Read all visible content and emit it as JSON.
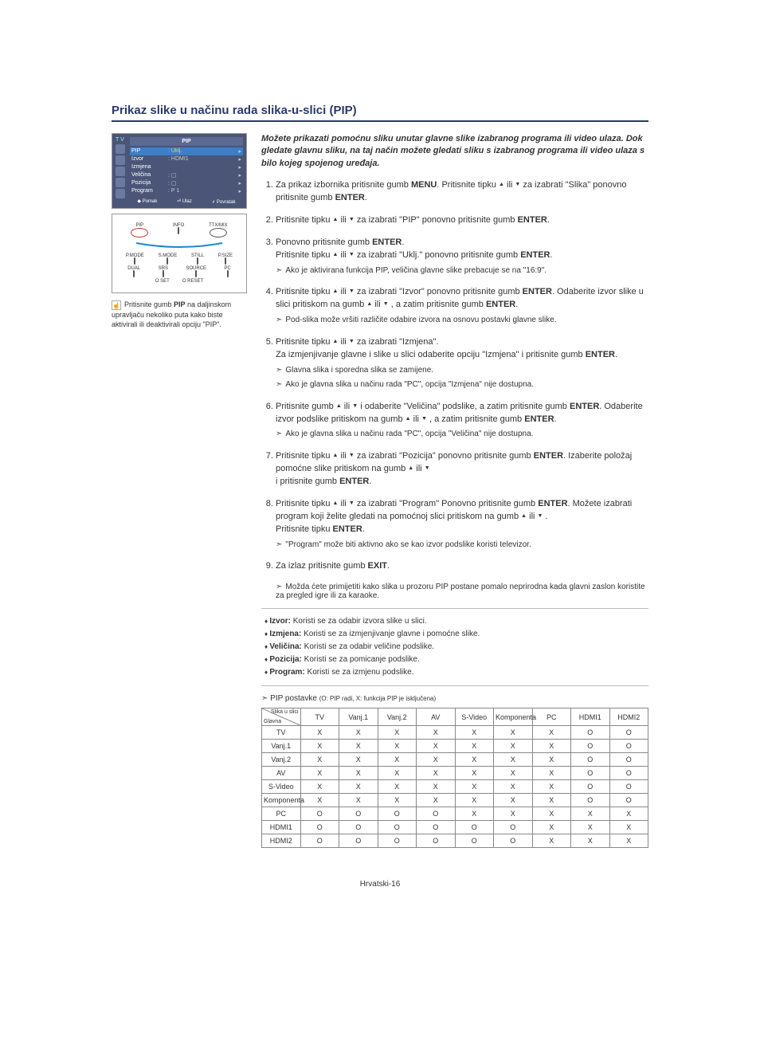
{
  "title": "Prikaz slike u načinu rada slika-u-slici (PIP)",
  "menu": {
    "header": "T V",
    "panel_title": "PIP",
    "rows": [
      {
        "lbl": "PIP",
        "val": ": Uklj.",
        "hl": true
      },
      {
        "lbl": "Izvor",
        "val": ": HDMI1",
        "hl": false
      },
      {
        "lbl": "Izmjena",
        "val": "",
        "hl": false
      },
      {
        "lbl": "Veličina",
        "val": ": ▢",
        "hl": false
      },
      {
        "lbl": "Pozicija",
        "val": ": ▢",
        "hl": false
      },
      {
        "lbl": "Program",
        "val": ": P 1",
        "hl": false
      }
    ],
    "footer": [
      "◆ Pomak",
      "⏎ Ulaz",
      "⸙ Povratak"
    ]
  },
  "remote_labels_r1": [
    "PIP",
    "INFO",
    "TTX/MIX"
  ],
  "remote_labels_r2": [
    "P.MODE",
    "S.MODE",
    "STILL",
    "P.SIZE"
  ],
  "remote_labels_r3": [
    "DUAL",
    "SRS",
    "SOURCE",
    "PC"
  ],
  "remote_labels_r4": [
    "O SET",
    "O RESET"
  ],
  "note_text_1": "Pritisnite gumb ",
  "note_bold": "PIP",
  "note_text_2": " na daljinskom upravljaču nekoliko puta kako biste aktivirali ili deaktivirali opciju \"PIP\".",
  "intro": "Možete prikazati pomoćnu sliku unutar glavne slike izabranog programa ili video ulaza. Dok gledate glavnu sliku, na taj način možete gledati sliku s izabranog programa ili video ulaza s bilo kojeg spojenog uređaja.",
  "steps": [
    {
      "t": "Za prikaz izbornika pritisnite gumb <b>MENU</b>. Pritisnite tipku <span class=\"tri\"></span> ili <span class=\"trid\"></span> za izabrati \"Slika\" ponovno pritisnite gumb <b>ENTER</b>."
    },
    {
      "t": "Pritisnite tipku <span class=\"tri\"></span> ili <span class=\"trid\"></span> za izabrati \"PIP\" ponovno pritisnite gumb <b>ENTER</b>."
    },
    {
      "t": "Ponovno pritisnite gumb <b>ENTER</b>.<br>Pritisnite tipku <span class=\"tri\"></span> ili <span class=\"trid\"></span> za izabrati \"Uklj.\" ponovno pritisnite gumb <b>ENTER</b>.",
      "sub": [
        "Ako je aktivirana funkcija PIP, veličina glavne slike prebacuje se na \"16:9\"."
      ]
    },
    {
      "t": "Pritisnite tipku <span class=\"tri\"></span> ili <span class=\"trid\"></span> za izabrati \"Izvor\" ponovno pritisnite gumb <b>ENTER</b>. Odaberite izvor slike u slici pritiskom na gumb <span class=\"tri\"></span> ili <span class=\"trid\"></span> , a zatim pritisnite gumb <b>ENTER</b>.",
      "sub": [
        "Pod-slika može vršiti različite odabire izvora na osnovu postavki glavne slike."
      ]
    },
    {
      "t": "Pritisnite tipku <span class=\"tri\"></span> ili <span class=\"trid\"></span> za izabrati \"Izmjena\".<br>Za izmjenjivanje glavne i slike u slici odaberite opciju \"Izmjena\" i pritisnite gumb <b>ENTER</b>.",
      "sub": [
        "Glavna slika i sporedna slika se zamijene.",
        "Ako je glavna slika u načinu rada \"PC\", opcija \"Izmjena\" nije dostupna."
      ]
    },
    {
      "t": "Pritisnite gumb <span class=\"tri\"></span> ili <span class=\"trid\"></span> i odaberite \"Veličina\" podslike, a zatim pritisnite gumb <b>ENTER</b>. Odaberite izvor podslike pritiskom na gumb <span class=\"tri\"></span> ili <span class=\"trid\"></span> , a zatim pritisnite gumb <b>ENTER</b>.",
      "sub": [
        "Ako je glavna slika u načinu rada \"PC\", opcija \"Veličina\" nije dostupna."
      ]
    },
    {
      "t": "Pritisnite tipku <span class=\"tri\"></span> ili <span class=\"trid\"></span> za izabrati \"Pozicija\" ponovno pritisnite gumb <b>ENTER</b>. Izaberite položaj pomoćne slike pritiskom na gumb <span class=\"tri\"></span> ili <span class=\"trid\"></span><br>i pritisnite gumb <b>ENTER</b>."
    },
    {
      "t": "Pritisnite tipku <span class=\"tri\"></span> ili <span class=\"trid\"></span> za izabrati \"Program\" Ponovno pritisnite gumb <b>ENTER</b>. Možete izabrati program koji želite gledati na pomoćnoj slici pritiskom na gumb <span class=\"tri\"></span> ili <span class=\"trid\"></span> .<br>Pritisnite tipku <b>ENTER</b>.",
      "sub": [
        "\"Program\" može biti aktivno ako se kao izvor podslike koristi televizor."
      ]
    },
    {
      "t": "Za izlaz pritisnite gumb <b>EXIT</b>.",
      "sub": [
        "Možda ćete primijetiti kako slika u prozoru PIP postane pomalo neprirodna kada glavni zaslon koristite za pregled igre ili za karaoke."
      ],
      "outsub": true
    }
  ],
  "defs": [
    {
      "b": "Izvor:",
      "t": " Koristi se za odabir izvora slike u slici."
    },
    {
      "b": "Izmjena:",
      "t": " Koristi se za izmjenjivanje glavne i pomoćne slike."
    },
    {
      "b": "Veličina:",
      "t": " Koristi se za odabir veličine podslike."
    },
    {
      "b": "Pozicija:",
      "t": " Koristi se za pomicanje podslike."
    },
    {
      "b": "Program:",
      "t": " Koristi se za izmjenu podslike."
    }
  ],
  "table": {
    "title": "PIP postavke ",
    "legend": "(O: PIP radi, X: funkcija PIP je isključena)",
    "diag_top": "Slika u slici",
    "diag_bot": "Glavna",
    "cols": [
      "TV",
      "Vanj.1",
      "Vanj.2",
      "AV",
      "S-Video",
      "Komponenta",
      "PC",
      "HDMI1",
      "HDMI2"
    ],
    "rows": [
      {
        "h": "TV",
        "c": [
          "X",
          "X",
          "X",
          "X",
          "X",
          "X",
          "X",
          "O",
          "O"
        ]
      },
      {
        "h": "Vanj.1",
        "c": [
          "X",
          "X",
          "X",
          "X",
          "X",
          "X",
          "X",
          "O",
          "O"
        ]
      },
      {
        "h": "Vanj.2",
        "c": [
          "X",
          "X",
          "X",
          "X",
          "X",
          "X",
          "X",
          "O",
          "O"
        ]
      },
      {
        "h": "AV",
        "c": [
          "X",
          "X",
          "X",
          "X",
          "X",
          "X",
          "X",
          "O",
          "O"
        ]
      },
      {
        "h": "S-Video",
        "c": [
          "X",
          "X",
          "X",
          "X",
          "X",
          "X",
          "X",
          "O",
          "O"
        ]
      },
      {
        "h": "Komponenta",
        "c": [
          "X",
          "X",
          "X",
          "X",
          "X",
          "X",
          "X",
          "O",
          "O"
        ]
      },
      {
        "h": "PC",
        "c": [
          "O",
          "O",
          "O",
          "O",
          "X",
          "X",
          "X",
          "X",
          "X"
        ]
      },
      {
        "h": "HDMI1",
        "c": [
          "O",
          "O",
          "O",
          "O",
          "O",
          "O",
          "X",
          "X",
          "X"
        ]
      },
      {
        "h": "HDMI2",
        "c": [
          "O",
          "O",
          "O",
          "O",
          "O",
          "O",
          "X",
          "X",
          "X"
        ]
      }
    ]
  },
  "footer": "Hrvatski-16"
}
